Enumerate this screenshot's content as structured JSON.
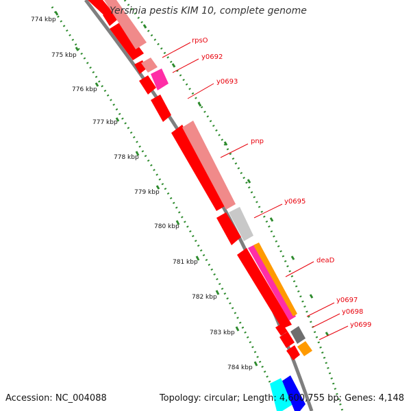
{
  "title": "Yersinia pestis KIM 10, complete genome",
  "footer": {
    "accession": "Accession: NC_004088",
    "summary": "Topology: circular; Length: 4,600,755 bp; Genes: 4,148"
  },
  "ticks": [
    {
      "label": "774 kbp"
    },
    {
      "label": "775 kbp"
    },
    {
      "label": "776 kbp"
    },
    {
      "label": "777 kbp"
    },
    {
      "label": "778 kbp"
    },
    {
      "label": "779 kbp"
    },
    {
      "label": "780 kbp"
    },
    {
      "label": "781 kbp"
    },
    {
      "label": "782 kbp"
    },
    {
      "label": "783 kbp"
    },
    {
      "label": "784 kbp"
    }
  ],
  "gene_labels": [
    "rpsO",
    "y0692",
    "y0693",
    "pnp",
    "y0695",
    "deaD",
    "y0697",
    "y0698",
    "y0699"
  ],
  "colors": {
    "backbone": "#7f7f7f",
    "ticks": "#2e8b2e",
    "label_red": "#e8000b",
    "cds_red": "#ff0000",
    "gene_pink": "#f08a8a",
    "gene_magenta": "#ff2ea6",
    "gene_gray": "#c8c8c8",
    "gene_darkgray": "#6e6e6e",
    "gene_orange": "#ff9a00",
    "gene_cyan": "#00ffff",
    "gene_blue": "#0000ff"
  }
}
